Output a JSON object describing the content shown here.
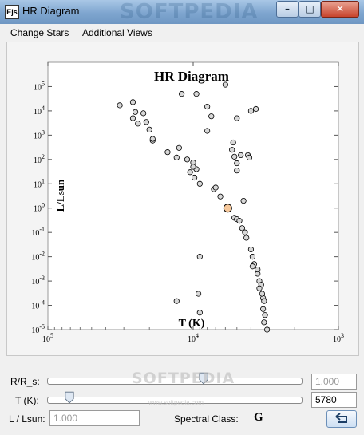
{
  "window": {
    "title": "HR Diagram",
    "watermark": "SOFTPEDIA",
    "icon": "ejs-app-icon"
  },
  "title_buttons": [
    "minimize",
    "maximize",
    "close"
  ],
  "menu": [
    "Change Stars",
    "Additional Views"
  ],
  "chart_data": {
    "type": "scatter",
    "title": "HR Diagram",
    "xlabel": "T (K)",
    "ylabel": "L/Lsun",
    "x_scale": "log-reversed",
    "xlim": [
      100000,
      1000
    ],
    "x_ticks": [
      "10^5",
      "10^4",
      "10^3"
    ],
    "y_scale": "log",
    "ylim": [
      1e-05,
      1000000
    ],
    "y_ticks": [
      "10^-5",
      "10^-4",
      "10^-3",
      "10^-2",
      "10^-1",
      "10^0",
      "10^1",
      "10^2",
      "10^3",
      "10^4",
      "10^5"
    ],
    "highlight": {
      "T": 5780,
      "L": 1.0,
      "color": "#f6c89b"
    },
    "points": [
      {
        "T": 32000,
        "L": 17000
      },
      {
        "T": 26000,
        "L": 23000
      },
      {
        "T": 25000,
        "L": 9000
      },
      {
        "T": 26000,
        "L": 5000
      },
      {
        "T": 22000,
        "L": 8000
      },
      {
        "T": 24000,
        "L": 3000
      },
      {
        "T": 21000,
        "L": 3500
      },
      {
        "T": 20000,
        "L": 1700
      },
      {
        "T": 19000,
        "L": 600
      },
      {
        "T": 19000,
        "L": 700
      },
      {
        "T": 15000,
        "L": 200
      },
      {
        "T": 13000,
        "L": 120
      },
      {
        "T": 11000,
        "L": 100
      },
      {
        "T": 12500,
        "L": 300
      },
      {
        "T": 10500,
        "L": 30
      },
      {
        "T": 10000,
        "L": 75
      },
      {
        "T": 9500,
        "L": 40
      },
      {
        "T": 9000,
        "L": 10
      },
      {
        "T": 10000,
        "L": 50
      },
      {
        "T": 7200,
        "L": 6
      },
      {
        "T": 7000,
        "L": 7
      },
      {
        "T": 12000,
        "L": 50000
      },
      {
        "T": 9500,
        "L": 50000
      },
      {
        "T": 8000,
        "L": 15000
      },
      {
        "T": 6000,
        "L": 120000
      },
      {
        "T": 7500,
        "L": 6000
      },
      {
        "T": 8000,
        "L": 1500
      },
      {
        "T": 5000,
        "L": 5000
      },
      {
        "T": 4000,
        "L": 10000
      },
      {
        "T": 3700,
        "L": 12000
      },
      {
        "T": 5300,
        "L": 500
      },
      {
        "T": 4700,
        "L": 150
      },
      {
        "T": 5200,
        "L": 130
      },
      {
        "T": 5000,
        "L": 35
      },
      {
        "T": 5000,
        "L": 70
      },
      {
        "T": 4200,
        "L": 150
      },
      {
        "T": 4100,
        "L": 120
      },
      {
        "T": 5400,
        "L": 250
      },
      {
        "T": 5200,
        "L": 0.4
      },
      {
        "T": 5000,
        "L": 0.35
      },
      {
        "T": 4800,
        "L": 0.3
      },
      {
        "T": 4600,
        "L": 0.15
      },
      {
        "T": 4400,
        "L": 0.1
      },
      {
        "T": 4300,
        "L": 0.06
      },
      {
        "T": 4000,
        "L": 0.02
      },
      {
        "T": 3900,
        "L": 0.01
      },
      {
        "T": 3800,
        "L": 0.005
      },
      {
        "T": 3900,
        "L": 0.004
      },
      {
        "T": 3600,
        "L": 0.002
      },
      {
        "T": 3500,
        "L": 0.001
      },
      {
        "T": 3400,
        "L": 0.0007
      },
      {
        "T": 3500,
        "L": 0.0005
      },
      {
        "T": 3300,
        "L": 0.0002
      },
      {
        "T": 3300,
        "L": 7e-05
      },
      {
        "T": 3200,
        "L": 4e-05
      },
      {
        "T": 3250,
        "L": 2e-05
      },
      {
        "T": 3100,
        "L": 1e-05
      },
      {
        "T": 3250,
        "L": 0.00015
      },
      {
        "T": 3350,
        "L": 0.0003
      },
      {
        "T": 3600,
        "L": 0.003
      },
      {
        "T": 9000,
        "L": 0.01
      },
      {
        "T": 9200,
        "L": 0.0003
      },
      {
        "T": 9000,
        "L": 5e-05
      },
      {
        "T": 13000,
        "L": 0.00015
      },
      {
        "T": 6500,
        "L": 3
      },
      {
        "T": 9800,
        "L": 18
      },
      {
        "T": 4500,
        "L": 2
      }
    ]
  },
  "controls": {
    "radius": {
      "label": "R/R_s:",
      "value": "1.000",
      "position": 0.62
    },
    "temp": {
      "label": "T (K):",
      "value": "5780",
      "position": 0.09
    },
    "luminosity": {
      "label": "L / Lsun:",
      "value": "1.000"
    },
    "spectral": {
      "label": "Spectral Class:",
      "value": "G"
    },
    "watermark": "SOFTPEDIA",
    "watermark_url": "www.softpedia.com"
  }
}
